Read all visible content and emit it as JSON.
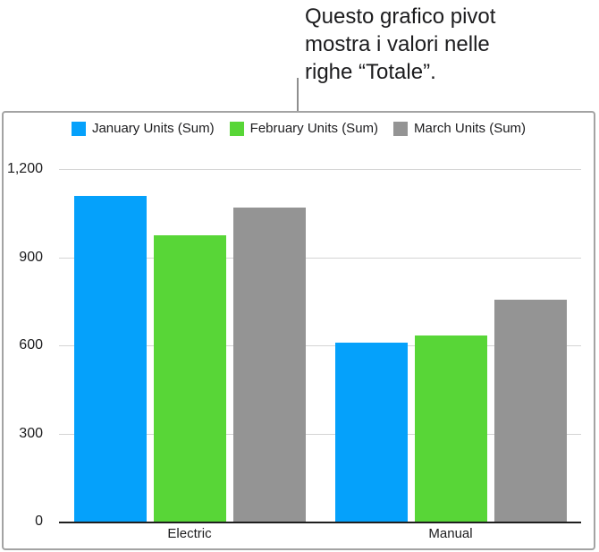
{
  "callout": {
    "lines": [
      "Questo grafico pivot",
      "mostra i valori nelle",
      "righe “Totale”."
    ]
  },
  "chart_data": {
    "type": "bar",
    "title": "",
    "xlabel": "",
    "ylabel": "",
    "categories": [
      "Electric",
      "Manual"
    ],
    "series": [
      {
        "name": "January Units (Sum)",
        "color": "#05a1fb",
        "values": [
          1110,
          610
        ]
      },
      {
        "name": "February Units (Sum)",
        "color": "#58d637",
        "values": [
          975,
          635
        ]
      },
      {
        "name": "March Units (Sum)",
        "color": "#949494",
        "values": [
          1070,
          755
        ]
      }
    ],
    "y_ticks": [
      {
        "value": 0,
        "label": "0"
      },
      {
        "value": 300,
        "label": "300"
      },
      {
        "value": 600,
        "label": "600"
      },
      {
        "value": 900,
        "label": "900"
      },
      {
        "value": 1200,
        "label": "1,200"
      }
    ],
    "ylim": [
      0,
      1200
    ],
    "grid": true,
    "legend_position": "top"
  },
  "colors": {
    "panel_border": "#a3a3a3",
    "gridline": "#d4d4d4",
    "axis_line": "#1f1f1f",
    "callout_line": "#8e8e8e",
    "text": "#1c1c1e"
  }
}
